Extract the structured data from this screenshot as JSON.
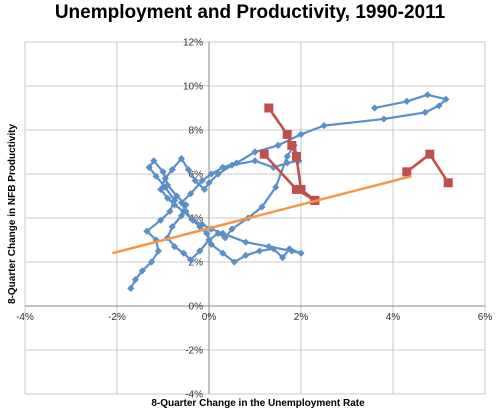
{
  "chart_data": {
    "type": "scatter",
    "title": "Unemployment and Productivity, 1990-2011",
    "xlabel": "8-Quarter Change in the Unemployment Rate",
    "ylabel": "8-Quarter Change in NFB Productivity",
    "xlim": [
      -4,
      6
    ],
    "ylim": [
      -4,
      12
    ],
    "x_ticks": [
      "-4%",
      "-2%",
      "0%",
      "2%",
      "4%",
      "6%"
    ],
    "y_ticks": [
      "-4%",
      "-2%",
      "0%",
      "2%",
      "4%",
      "6%",
      "8%",
      "10%",
      "12%"
    ],
    "grid": true,
    "colors": {
      "series": "#5b8fc7",
      "highlight": "#c0504d",
      "trend": "#f79646",
      "grid": "#c8c8c8"
    },
    "series": [
      {
        "x": [
          -1.7,
          -1.6,
          -1.45,
          -1.25,
          -1.1,
          -1.15,
          -1.35,
          -1.05,
          -0.85,
          -0.75,
          -0.95,
          -1.15,
          -1.3,
          -1.2,
          -1.0,
          -0.9,
          -0.7,
          -0.5,
          -0.6,
          -0.8,
          -0.9,
          -0.75,
          -0.55,
          -0.4,
          -0.2,
          0.0,
          0.2,
          0.35,
          0.5,
          0.85,
          1.15,
          1.45,
          1.7,
          1.85,
          1.95,
          1.7,
          1.4,
          1.0,
          0.5,
          0.2,
          0.0,
          -0.1,
          -0.3,
          -0.45,
          -0.6,
          -0.8,
          -0.95,
          -1.05,
          -0.9,
          -0.75,
          -0.55,
          -0.35,
          -0.15,
          0.05,
          0.3,
          0.8,
          1.3,
          1.8,
          2.0,
          1.75,
          1.6,
          1.4,
          1.1,
          0.8,
          0.55,
          0.3,
          0.05,
          -0.05,
          -0.2,
          -0.35,
          -0.5,
          -0.6,
          -0.4,
          -0.15,
          0.05,
          0.3,
          0.6,
          1.0,
          1.5,
          2.0,
          2.5,
          3.8,
          4.7,
          5.0,
          5.15,
          4.75,
          4.3,
          3.6
        ],
        "y": [
          0.8,
          1.2,
          1.6,
          2.0,
          2.5,
          3.0,
          3.4,
          3.9,
          4.3,
          4.8,
          5.4,
          5.9,
          6.3,
          6.6,
          6.1,
          5.5,
          5.0,
          4.6,
          4.1,
          3.6,
          3.1,
          2.7,
          2.4,
          2.1,
          2.5,
          3.0,
          3.3,
          3.1,
          3.5,
          4.0,
          4.5,
          5.4,
          6.8,
          7.3,
          6.6,
          6.5,
          6.3,
          6.6,
          6.4,
          6.0,
          5.6,
          5.3,
          5.7,
          6.2,
          6.7,
          6.2,
          5.8,
          5.3,
          4.9,
          4.6,
          4.3,
          3.9,
          3.7,
          3.5,
          3.3,
          2.9,
          2.7,
          2.5,
          2.4,
          2.6,
          2.2,
          2.6,
          2.5,
          2.3,
          2.0,
          2.4,
          2.8,
          3.3,
          3.6,
          3.9,
          4.3,
          4.7,
          5.1,
          5.7,
          6.0,
          6.3,
          6.5,
          7.0,
          7.3,
          7.8,
          8.2,
          8.5,
          8.8,
          9.1,
          9.4,
          9.6,
          9.3,
          9.0
        ]
      }
    ],
    "highlight": {
      "segments": [
        {
          "x": [
            1.3,
            1.7,
            1.8,
            1.9,
            2.0,
            2.3
          ],
          "y": [
            9.0,
            7.8,
            7.3,
            6.8,
            5.3,
            4.8
          ]
        },
        {
          "x": [
            1.2,
            1.9,
            2.3
          ],
          "y": [
            6.9,
            5.3,
            4.8
          ]
        },
        {
          "x": [
            4.3,
            4.8,
            5.2
          ],
          "y": [
            6.1,
            6.9,
            5.6
          ]
        }
      ]
    },
    "trend": {
      "x": [
        -2.1,
        4.4
      ],
      "y": [
        2.4,
        5.9
      ]
    }
  }
}
